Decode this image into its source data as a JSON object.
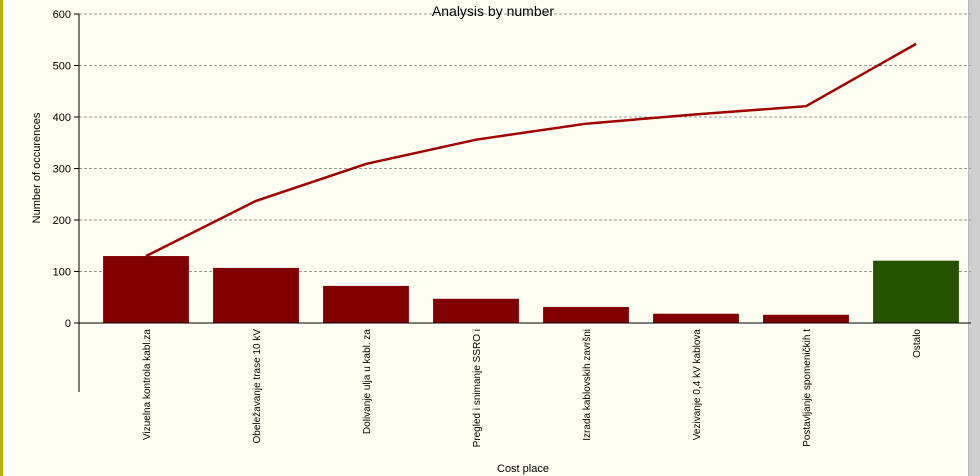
{
  "chart_data": {
    "type": "bar",
    "title": "Analysis by number",
    "xlabel": "Cost place",
    "ylabel": "Number of occurences",
    "ylim": [
      0,
      600
    ],
    "yticks": [
      0,
      100,
      200,
      300,
      400,
      500,
      600
    ],
    "grid": true,
    "categories": [
      "Vizuelna kontrola kabl.za",
      "Obeležavanje trase 10 kV",
      "Dolivanje ulja u kabl. za",
      "Pregled i snimanje SSRO i",
      "Izrada kablovskih završni",
      "Vezivanje 0,4 kV kablova",
      "Postavljanje spomeničkih t",
      "Ostalo"
    ],
    "series": [
      {
        "type": "bar",
        "values": [
          130,
          107,
          72,
          47,
          31,
          18,
          16,
          121
        ]
      },
      {
        "type": "line",
        "values": [
          130,
          237,
          309,
          356,
          387,
          405,
          421,
          542
        ]
      }
    ],
    "colors": {
      "bar": "#800000",
      "last_bar": "#245200",
      "line": "#a00000",
      "grid": "#9a9a9a",
      "background": "#fefef3"
    }
  }
}
